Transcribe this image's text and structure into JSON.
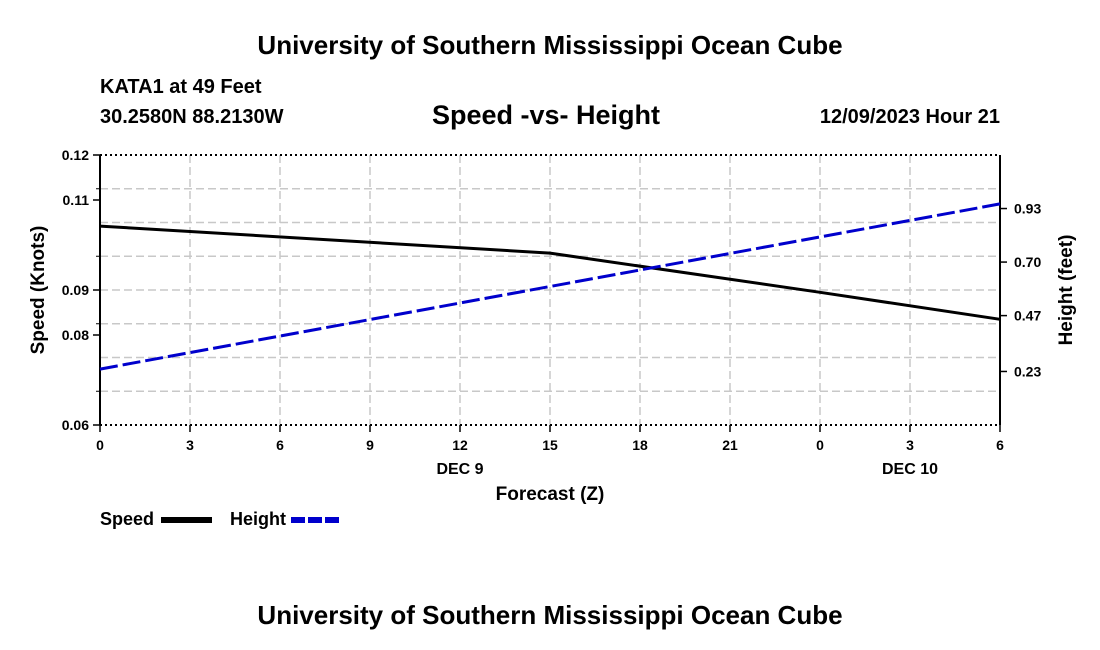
{
  "header": {
    "title": "University of Southern Mississippi Ocean Cube",
    "station": "KATA1 at 49 Feet",
    "coords": "30.2580N  88.2130W",
    "chart_title": "Speed -vs- Height",
    "datetime": "12/09/2023 Hour 21"
  },
  "footer": {
    "title": "University of Southern Mississippi Ocean Cube"
  },
  "legend": {
    "items": [
      {
        "label": "Speed",
        "color": "#000000",
        "style": "solid"
      },
      {
        "label": "Height",
        "color": "#0000cc",
        "style": "dashed"
      }
    ]
  },
  "chart_data": {
    "type": "line",
    "title": "Speed -vs- Height",
    "xlabel": "Forecast (Z)",
    "ylabel_left": "Speed (Knots)",
    "ylabel_right": "Height (feet)",
    "x_hours": [
      0,
      3,
      6,
      9,
      12,
      15,
      18,
      21,
      24,
      27,
      30
    ],
    "x_tick_labels": [
      "0",
      "3",
      "6",
      "9",
      "12",
      "15",
      "18",
      "21",
      "0",
      "3",
      "6"
    ],
    "date_labels": [
      {
        "label": "DEC 9",
        "hour": 12
      },
      {
        "label": "DEC 10",
        "hour": 27
      }
    ],
    "xlim": [
      0,
      30
    ],
    "ylim_left": [
      0.06,
      0.12
    ],
    "y_left_ticks": [
      0.06,
      0.08,
      0.09,
      0.11,
      0.12
    ],
    "y_left_tick_labels": [
      "0.06",
      "0.08",
      "0.09",
      "0.11",
      "0.12"
    ],
    "ylim_right": [
      0.0,
      1.16
    ],
    "y_right_ticks": [
      0.23,
      0.47,
      0.7,
      0.93
    ],
    "y_right_tick_labels": [
      "0.23",
      "0.47",
      "0.70",
      "0.93"
    ],
    "grid": true,
    "series": [
      {
        "name": "Speed",
        "axis": "left",
        "color": "#000000",
        "dash": false,
        "x": [
          0,
          15,
          24,
          30
        ],
        "y": [
          0.1042,
          0.0982,
          0.0895,
          0.0835
        ]
      },
      {
        "name": "Height",
        "axis": "right",
        "color": "#0000cc",
        "dash": true,
        "x": [
          0,
          30
        ],
        "y": [
          0.24,
          0.95
        ]
      }
    ]
  }
}
